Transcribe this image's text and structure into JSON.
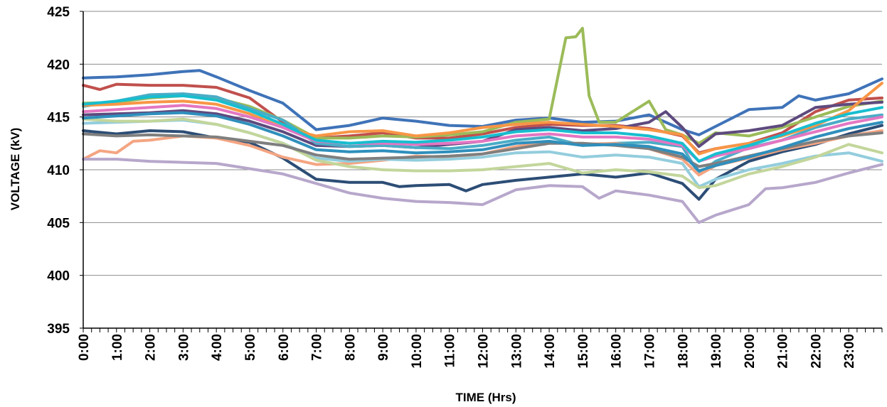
{
  "chart_data": {
    "type": "line",
    "title": "",
    "xlabel": "TIME (Hrs)",
    "ylabel": "VOLTAGE (kV)",
    "ylim": [
      395,
      425
    ],
    "y_ticks": [
      "395",
      "400",
      "405",
      "410",
      "415",
      "420",
      "425"
    ],
    "x_range": [
      0,
      24
    ],
    "x_ticks": [
      "0:00",
      "1:00",
      "2:00",
      "3:00",
      "4:00",
      "5:00",
      "6:00",
      "7:00",
      "8:00",
      "9:00",
      "10:00",
      "11:00",
      "12:00",
      "13:00",
      "14:00",
      "15:00",
      "16:00",
      "17:00",
      "18:00",
      "19:00",
      "20:00",
      "21:00",
      "22:00",
      "23:00"
    ],
    "grid": "horizontal",
    "legend": "none",
    "series": [
      {
        "color": "#3f73b8",
        "x": [
          0,
          1,
          2,
          3,
          3.5,
          4,
          5,
          6,
          7,
          8,
          9,
          10,
          11,
          12,
          13,
          14,
          15,
          16,
          17,
          18,
          18.5,
          19,
          20,
          21,
          21.5,
          22,
          23,
          24
        ],
        "values": [
          418.7,
          418.8,
          419.0,
          419.3,
          419.4,
          418.8,
          417.5,
          416.3,
          413.8,
          414.2,
          414.9,
          414.6,
          414.2,
          414.1,
          414.7,
          414.9,
          414.5,
          414.6,
          415.2,
          413.8,
          413.3,
          414.1,
          415.7,
          415.9,
          417.0,
          416.6,
          417.2,
          418.6
        ]
      },
      {
        "color": "#c0504d",
        "x": [
          0,
          0.5,
          1,
          2,
          3,
          4,
          5,
          6,
          7,
          8,
          9,
          10,
          11,
          12,
          13,
          14,
          15,
          16,
          17,
          18,
          18.5,
          19,
          20,
          21,
          22,
          23,
          24
        ],
        "values": [
          418.0,
          417.6,
          418.1,
          418.0,
          418.0,
          417.8,
          416.8,
          414.5,
          413.0,
          413.2,
          413.5,
          413.0,
          413.0,
          413.4,
          414.0,
          414.3,
          414.2,
          414.2,
          413.9,
          413.2,
          411.6,
          412.0,
          412.5,
          413.5,
          415.5,
          416.6,
          416.8
        ]
      },
      {
        "color": "#9bbb59",
        "x": [
          0,
          1,
          2,
          3,
          4,
          5,
          6,
          7,
          8,
          9,
          10,
          11,
          12,
          13,
          14,
          14.5,
          14.8,
          15,
          15.2,
          15.5,
          16,
          17,
          17.5,
          18,
          18.5,
          19,
          20,
          21,
          22,
          23,
          24
        ],
        "values": [
          416.3,
          416.4,
          416.8,
          417.0,
          416.8,
          416.0,
          414.7,
          413.0,
          413.0,
          413.2,
          413.1,
          413.3,
          413.6,
          414.5,
          414.8,
          422.5,
          422.6,
          423.4,
          417.0,
          414.5,
          414.5,
          416.5,
          413.8,
          413.3,
          412.5,
          413.5,
          413.2,
          414.0,
          415.0,
          416.0,
          416.5
        ]
      },
      {
        "color": "#5e4a7e",
        "x": [
          0,
          1,
          2,
          3,
          4,
          5,
          6,
          7,
          8,
          9,
          10,
          11,
          12,
          13,
          14,
          15,
          16,
          17,
          17.5,
          18,
          18.5,
          19,
          20,
          21,
          22,
          23,
          24
        ],
        "values": [
          415.2,
          415.3,
          415.4,
          415.6,
          415.3,
          414.6,
          413.6,
          412.3,
          412.2,
          412.3,
          412.1,
          412.4,
          412.7,
          413.8,
          414.0,
          413.7,
          413.9,
          414.5,
          415.5,
          414.0,
          412.2,
          413.4,
          413.7,
          414.2,
          415.9,
          416.2,
          416.4
        ]
      },
      {
        "color": "#4bacc6",
        "x": [
          0,
          1,
          2,
          3,
          4,
          5,
          6,
          7,
          8,
          9,
          10,
          11,
          12,
          13,
          14,
          15,
          16,
          17,
          18,
          18.5,
          19,
          20,
          21,
          22,
          23,
          24
        ],
        "values": [
          416.0,
          416.5,
          417.1,
          417.2,
          416.9,
          415.8,
          414.7,
          412.5,
          412.2,
          412.3,
          412.1,
          412.0,
          412.3,
          412.8,
          413.1,
          412.3,
          412.5,
          412.6,
          412.2,
          409.6,
          410.8,
          412.1,
          412.8,
          414.0,
          414.8,
          415.2
        ]
      },
      {
        "color": "#f79646",
        "x": [
          0,
          1,
          2,
          3,
          4,
          5,
          6,
          7,
          8,
          9,
          10,
          11,
          12,
          13,
          14,
          15,
          16,
          17,
          18,
          18.5,
          19,
          20,
          21,
          22,
          23,
          24
        ],
        "values": [
          416.1,
          416.2,
          416.4,
          416.5,
          416.2,
          415.3,
          414.0,
          413.2,
          413.6,
          413.7,
          413.2,
          413.5,
          414.0,
          414.3,
          414.5,
          414.3,
          414.1,
          413.8,
          413.3,
          411.5,
          412.0,
          412.5,
          413.2,
          414.2,
          415.6,
          418.2
        ]
      },
      {
        "color": "#2c4d75",
        "x": [
          0,
          1,
          2,
          3,
          4,
          5,
          6,
          7,
          8,
          9,
          9.5,
          10,
          11,
          11.5,
          12,
          13,
          14,
          15,
          16,
          17,
          18,
          18.5,
          19,
          20,
          21,
          22,
          23,
          24
        ],
        "values": [
          413.7,
          413.4,
          413.7,
          413.6,
          413.0,
          412.6,
          411.1,
          409.1,
          408.8,
          408.8,
          408.4,
          408.5,
          408.6,
          408.0,
          408.6,
          409.0,
          409.3,
          409.6,
          409.3,
          409.7,
          408.7,
          407.2,
          409.1,
          410.8,
          411.7,
          412.4,
          413.4,
          414.2
        ]
      },
      {
        "color": "#f4a582",
        "x": [
          0,
          0.5,
          1,
          1.5,
          2,
          3,
          4,
          5,
          6,
          7,
          8,
          9,
          10,
          11,
          12,
          13,
          14,
          15,
          16,
          17,
          18,
          18.5,
          19,
          20,
          21,
          22,
          23,
          24
        ],
        "values": [
          411.0,
          411.8,
          411.6,
          412.7,
          412.8,
          413.2,
          413.0,
          412.3,
          411.2,
          410.5,
          410.6,
          410.9,
          411.3,
          411.2,
          411.5,
          412.2,
          412.6,
          412.4,
          412.5,
          412.0,
          411.0,
          409.5,
          410.4,
          411.1,
          411.9,
          412.5,
          413.2,
          413.7
        ]
      },
      {
        "color": "#b7a7cb",
        "x": [
          0,
          1,
          2,
          3,
          4,
          5,
          6,
          7,
          8,
          9,
          10,
          11,
          12,
          13,
          14,
          15,
          15.5,
          16,
          17,
          18,
          18.5,
          19,
          20,
          20.5,
          21,
          22,
          23,
          24
        ],
        "values": [
          411.0,
          411.0,
          410.8,
          410.7,
          410.6,
          410.1,
          409.6,
          408.7,
          407.8,
          407.3,
          407.0,
          406.9,
          406.7,
          408.1,
          408.5,
          408.4,
          407.3,
          408.0,
          407.6,
          407.0,
          405.0,
          405.7,
          406.7,
          408.2,
          408.3,
          408.8,
          409.7,
          410.5
        ]
      },
      {
        "color": "#93cddd",
        "x": [
          0,
          1,
          2,
          3,
          4,
          5,
          6,
          7,
          8,
          9,
          10,
          11,
          12,
          13,
          14,
          15,
          16,
          17,
          18,
          18.5,
          19,
          20,
          21,
          22,
          23,
          24
        ],
        "values": [
          414.4,
          414.5,
          414.6,
          414.7,
          414.3,
          413.5,
          412.5,
          411.1,
          410.8,
          411.0,
          410.9,
          411.0,
          411.2,
          411.6,
          411.7,
          411.2,
          411.4,
          411.2,
          410.6,
          408.4,
          409.1,
          410.0,
          410.6,
          411.3,
          411.6,
          410.8
        ]
      },
      {
        "color": "#c3d69b",
        "x": [
          0,
          1,
          2,
          3,
          4,
          5,
          6,
          7,
          8,
          9,
          10,
          11,
          12,
          13,
          14,
          15,
          16,
          17,
          18,
          18.5,
          19,
          20,
          21,
          22,
          23,
          24
        ],
        "values": [
          414.8,
          414.6,
          414.6,
          414.8,
          414.3,
          413.5,
          412.5,
          410.9,
          410.3,
          410.0,
          409.9,
          409.9,
          410.0,
          410.3,
          410.6,
          409.7,
          410.0,
          409.8,
          409.4,
          408.3,
          408.5,
          409.6,
          410.3,
          411.2,
          412.4,
          411.6
        ]
      },
      {
        "color": "#7f7f7f",
        "x": [
          0,
          1,
          2,
          3,
          4,
          5,
          6,
          7,
          8,
          9,
          10,
          11,
          12,
          13,
          14,
          15,
          16,
          17,
          18,
          18.5,
          19,
          20,
          21,
          22,
          23,
          24
        ],
        "values": [
          413.4,
          413.2,
          413.3,
          413.2,
          413.1,
          412.7,
          412.3,
          411.4,
          411.0,
          411.1,
          411.2,
          411.3,
          411.5,
          412.0,
          412.5,
          412.5,
          412.3,
          412.0,
          411.2,
          410.3,
          410.6,
          411.3,
          412.0,
          412.7,
          413.2,
          413.5
        ]
      },
      {
        "color": "#e377c2",
        "x": [
          0,
          1,
          2,
          3,
          4,
          5,
          6,
          7,
          8,
          9,
          10,
          11,
          12,
          13,
          14,
          15,
          16,
          17,
          18,
          18.5,
          19,
          20,
          21,
          22,
          23,
          24
        ],
        "values": [
          415.5,
          415.7,
          415.9,
          416.1,
          415.8,
          415.0,
          414.0,
          412.7,
          412.5,
          412.5,
          412.4,
          412.5,
          412.7,
          413.2,
          413.4,
          413.1,
          413.1,
          412.9,
          412.3,
          410.8,
          411.3,
          412.0,
          412.8,
          413.6,
          414.4,
          415.0
        ]
      },
      {
        "color": "#17becf",
        "x": [
          0,
          1,
          2,
          3,
          4,
          5,
          6,
          7,
          8,
          9,
          10,
          11,
          12,
          13,
          14,
          15,
          16,
          17,
          18,
          18.5,
          19,
          20,
          21,
          22,
          23,
          24
        ],
        "values": [
          416.2,
          416.5,
          416.9,
          417.0,
          416.6,
          415.6,
          414.3,
          412.8,
          412.5,
          412.7,
          412.6,
          412.8,
          413.1,
          413.6,
          413.8,
          413.5,
          413.5,
          413.2,
          412.5,
          410.8,
          411.5,
          412.3,
          413.3,
          414.4,
          415.3,
          415.9
        ]
      },
      {
        "color": "#2f8fbc",
        "x": [
          0,
          1,
          2,
          3,
          4,
          5,
          6,
          7,
          8,
          9,
          10,
          11,
          12,
          13,
          14,
          15,
          16,
          17,
          18,
          18.5,
          19,
          20,
          21,
          22,
          23,
          24
        ],
        "values": [
          414.9,
          415.1,
          415.3,
          415.4,
          415.1,
          414.3,
          413.2,
          411.9,
          411.7,
          411.8,
          411.6,
          411.7,
          411.9,
          412.5,
          412.7,
          412.3,
          412.4,
          412.2,
          411.5,
          409.9,
          410.4,
          411.2,
          412.1,
          413.1,
          413.9,
          414.5
        ]
      }
    ]
  }
}
